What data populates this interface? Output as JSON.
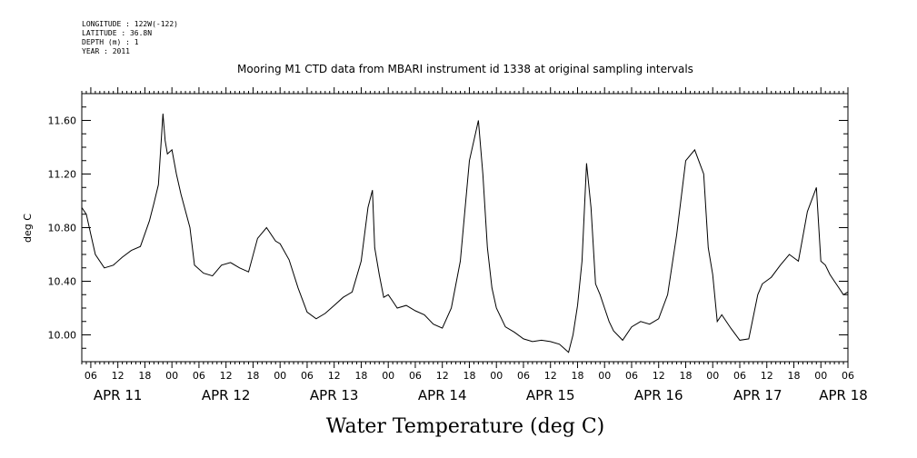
{
  "header": {
    "lines": [
      "LONGITUDE : 122W(-122)",
      "LATITUDE : 36.8N",
      "DEPTH (m) : 1",
      "YEAR : 2011"
    ]
  },
  "chart_data": {
    "type": "line",
    "title": "Mooring M1 CTD data from MBARI instrument id 1338 at original sampling intervals",
    "xlabel": "Water Temperature (deg C)",
    "ylabel": "deg C",
    "xlim": [
      "2011-04-11T04:00",
      "2011-04-18T06:00"
    ],
    "ylim": [
      9.8,
      11.8
    ],
    "yticks": [
      "10.00",
      "10.40",
      "10.80",
      "11.20",
      "11.60"
    ],
    "ytick_values": [
      10.0,
      10.4,
      10.8,
      11.2,
      11.6
    ],
    "hour_labels": [
      "06",
      "12",
      "18",
      "00",
      "06",
      "12",
      "18",
      "00",
      "06",
      "12",
      "18",
      "00",
      "06",
      "12",
      "18",
      "00",
      "06",
      "12",
      "18",
      "00",
      "06",
      "12",
      "18",
      "00",
      "06",
      "12",
      "18",
      "00",
      "06"
    ],
    "date_labels": [
      "APR 11",
      "APR 12",
      "APR 13",
      "APR 14",
      "APR 15",
      "APR 16",
      "APR 17",
      "APR 18"
    ],
    "grid": false,
    "series": [
      {
        "x": [
          "2011-04-11T04:00",
          "2011-04-11T05:00",
          "2011-04-11T06:00",
          "2011-04-11T07:00",
          "2011-04-11T09:00",
          "2011-04-11T11:00",
          "2011-04-11T13:00",
          "2011-04-11T15:00",
          "2011-04-11T17:00",
          "2011-04-11T19:00",
          "2011-04-11T20:00",
          "2011-04-11T21:00",
          "2011-04-11T22:00",
          "2011-04-11T22:30",
          "2011-04-11T23:00",
          "2011-04-12T00:00",
          "2011-04-12T01:00",
          "2011-04-12T02:00",
          "2011-04-12T04:00",
          "2011-04-12T05:00",
          "2011-04-12T07:00",
          "2011-04-12T09:00",
          "2011-04-12T11:00",
          "2011-04-12T13:00",
          "2011-04-12T15:00",
          "2011-04-12T17:00",
          "2011-04-12T19:00",
          "2011-04-12T21:00",
          "2011-04-12T23:00",
          "2011-04-13T00:00",
          "2011-04-13T02:00",
          "2011-04-13T04:00",
          "2011-04-13T06:00",
          "2011-04-13T08:00",
          "2011-04-13T10:00",
          "2011-04-13T12:00",
          "2011-04-13T14:00",
          "2011-04-13T16:00",
          "2011-04-13T18:00",
          "2011-04-13T19:30",
          "2011-04-13T20:30",
          "2011-04-13T21:00",
          "2011-04-13T22:00",
          "2011-04-13T23:00",
          "2011-04-14T00:00",
          "2011-04-14T01:00",
          "2011-04-14T02:00",
          "2011-04-14T04:00",
          "2011-04-14T06:00",
          "2011-04-14T08:00",
          "2011-04-14T10:00",
          "2011-04-14T12:00",
          "2011-04-14T14:00",
          "2011-04-14T16:00",
          "2011-04-14T18:00",
          "2011-04-14T20:00",
          "2011-04-14T21:00",
          "2011-04-14T22:00",
          "2011-04-14T23:00",
          "2011-04-15T00:00",
          "2011-04-15T02:00",
          "2011-04-15T04:00",
          "2011-04-15T06:00",
          "2011-04-15T08:00",
          "2011-04-15T10:00",
          "2011-04-15T12:00",
          "2011-04-15T14:00",
          "2011-04-15T16:00",
          "2011-04-15T17:00",
          "2011-04-15T18:00",
          "2011-04-15T19:00",
          "2011-04-15T20:00",
          "2011-04-15T21:00",
          "2011-04-15T22:00",
          "2011-04-15T23:00",
          "2011-04-16T00:00",
          "2011-04-16T01:00",
          "2011-04-16T02:00",
          "2011-04-16T04:00",
          "2011-04-16T06:00",
          "2011-04-16T08:00",
          "2011-04-16T10:00",
          "2011-04-16T12:00",
          "2011-04-16T14:00",
          "2011-04-16T16:00",
          "2011-04-16T18:00",
          "2011-04-16T20:00",
          "2011-04-16T22:00",
          "2011-04-16T23:00",
          "2011-04-17T00:00",
          "2011-04-17T01:00",
          "2011-04-17T02:00",
          "2011-04-17T04:00",
          "2011-04-17T06:00",
          "2011-04-17T08:00",
          "2011-04-17T10:00",
          "2011-04-17T11:00",
          "2011-04-17T13:00",
          "2011-04-17T15:00",
          "2011-04-17T17:00",
          "2011-04-17T19:00",
          "2011-04-17T21:00",
          "2011-04-17T23:00",
          "2011-04-18T00:00",
          "2011-04-18T01:00",
          "2011-04-18T02:00",
          "2011-04-18T03:00",
          "2011-04-18T04:00",
          "2011-04-18T05:00",
          "2011-04-18T06:00"
        ],
        "y": [
          10.95,
          10.9,
          10.75,
          10.6,
          10.5,
          10.52,
          10.58,
          10.63,
          10.66,
          10.85,
          10.98,
          11.12,
          11.65,
          11.45,
          11.35,
          11.38,
          11.2,
          11.05,
          10.8,
          10.52,
          10.46,
          10.44,
          10.52,
          10.54,
          10.5,
          10.47,
          10.72,
          10.8,
          10.7,
          10.68,
          10.56,
          10.35,
          10.17,
          10.12,
          10.16,
          10.22,
          10.28,
          10.32,
          10.55,
          10.95,
          11.08,
          10.65,
          10.45,
          10.28,
          10.3,
          10.25,
          10.2,
          10.22,
          10.18,
          10.15,
          10.08,
          10.05,
          10.2,
          10.55,
          11.3,
          11.6,
          11.2,
          10.65,
          10.35,
          10.2,
          10.06,
          10.02,
          9.97,
          9.95,
          9.96,
          9.95,
          9.93,
          9.87,
          10.0,
          10.22,
          10.55,
          11.28,
          10.95,
          10.38,
          10.3,
          10.2,
          10.1,
          10.03,
          9.96,
          10.06,
          10.1,
          10.08,
          10.12,
          10.3,
          10.75,
          11.3,
          11.38,
          11.2,
          10.65,
          10.45,
          10.1,
          10.15,
          10.05,
          9.96,
          9.97,
          10.3,
          10.38,
          10.43,
          10.52,
          10.6,
          10.55,
          10.92,
          11.1,
          10.55,
          10.52,
          10.45,
          10.4,
          10.35,
          10.3,
          10.32
        ]
      }
    ]
  }
}
